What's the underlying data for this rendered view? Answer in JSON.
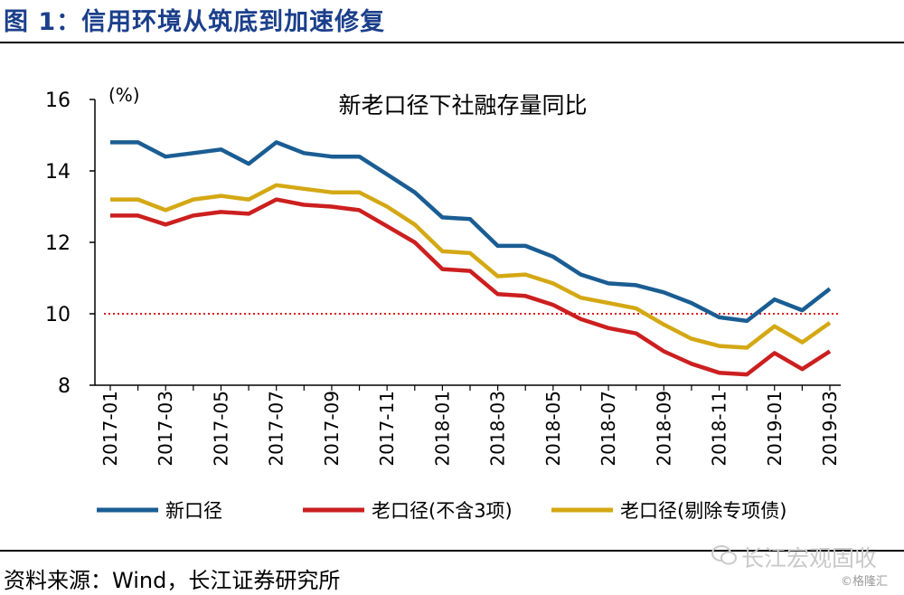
{
  "figure": {
    "title": "图 1：信用环境从筑底到加速修复",
    "source": "资料来源：Wind，长江证券研究所",
    "watermark": "长江宏观固收",
    "watermark2": "©格隆汇"
  },
  "chart_data": {
    "type": "line",
    "title": "新老口径下社融存量同比",
    "ylabel": "(%)",
    "xlabel": "",
    "ylim": [
      8,
      16
    ],
    "yticks": [
      8,
      10,
      12,
      14,
      16
    ],
    "grid": false,
    "legend_position": "bottom",
    "reference_line": {
      "y": 10,
      "style": "dotted",
      "color": "#e0191b"
    },
    "x": [
      "2017-01",
      "2017-02",
      "2017-03",
      "2017-04",
      "2017-05",
      "2017-06",
      "2017-07",
      "2017-08",
      "2017-09",
      "2017-10",
      "2017-11",
      "2017-12",
      "2018-01",
      "2018-02",
      "2018-03",
      "2018-04",
      "2018-05",
      "2018-06",
      "2018-07",
      "2018-08",
      "2018-09",
      "2018-10",
      "2018-11",
      "2018-12",
      "2019-01",
      "2019-02",
      "2019-03"
    ],
    "xtick_labels": [
      "2017-01",
      "2017-03",
      "2017-05",
      "2017-07",
      "2017-09",
      "2017-11",
      "2018-01",
      "2018-03",
      "2018-05",
      "2018-07",
      "2018-09",
      "2018-11",
      "2019-01",
      "2019-03"
    ],
    "series": [
      {
        "name": "新口径",
        "color": "#1a5d93",
        "values": [
          14.8,
          14.8,
          14.4,
          14.5,
          14.6,
          14.2,
          14.8,
          14.5,
          14.4,
          14.4,
          13.9,
          13.4,
          12.7,
          12.65,
          11.9,
          11.9,
          11.6,
          11.1,
          10.85,
          10.8,
          10.6,
          10.3,
          9.9,
          9.8,
          10.4,
          10.1,
          10.7
        ]
      },
      {
        "name": "老口径(不含3项)",
        "color": "#cc1f1f",
        "values": [
          12.75,
          12.75,
          12.5,
          12.75,
          12.85,
          12.8,
          13.2,
          13.05,
          13.0,
          12.9,
          12.45,
          12.0,
          11.25,
          11.2,
          10.55,
          10.5,
          10.25,
          9.85,
          9.6,
          9.45,
          8.95,
          8.6,
          8.35,
          8.3,
          8.9,
          8.45,
          8.95
        ]
      },
      {
        "name": "老口径(剔除专项债)",
        "color": "#d4a814",
        "values": [
          13.2,
          13.2,
          12.9,
          13.2,
          13.3,
          13.2,
          13.6,
          13.5,
          13.4,
          13.4,
          13.0,
          12.5,
          11.75,
          11.7,
          11.05,
          11.1,
          10.85,
          10.45,
          10.3,
          10.15,
          9.7,
          9.3,
          9.1,
          9.05,
          9.65,
          9.2,
          9.75
        ]
      }
    ]
  }
}
